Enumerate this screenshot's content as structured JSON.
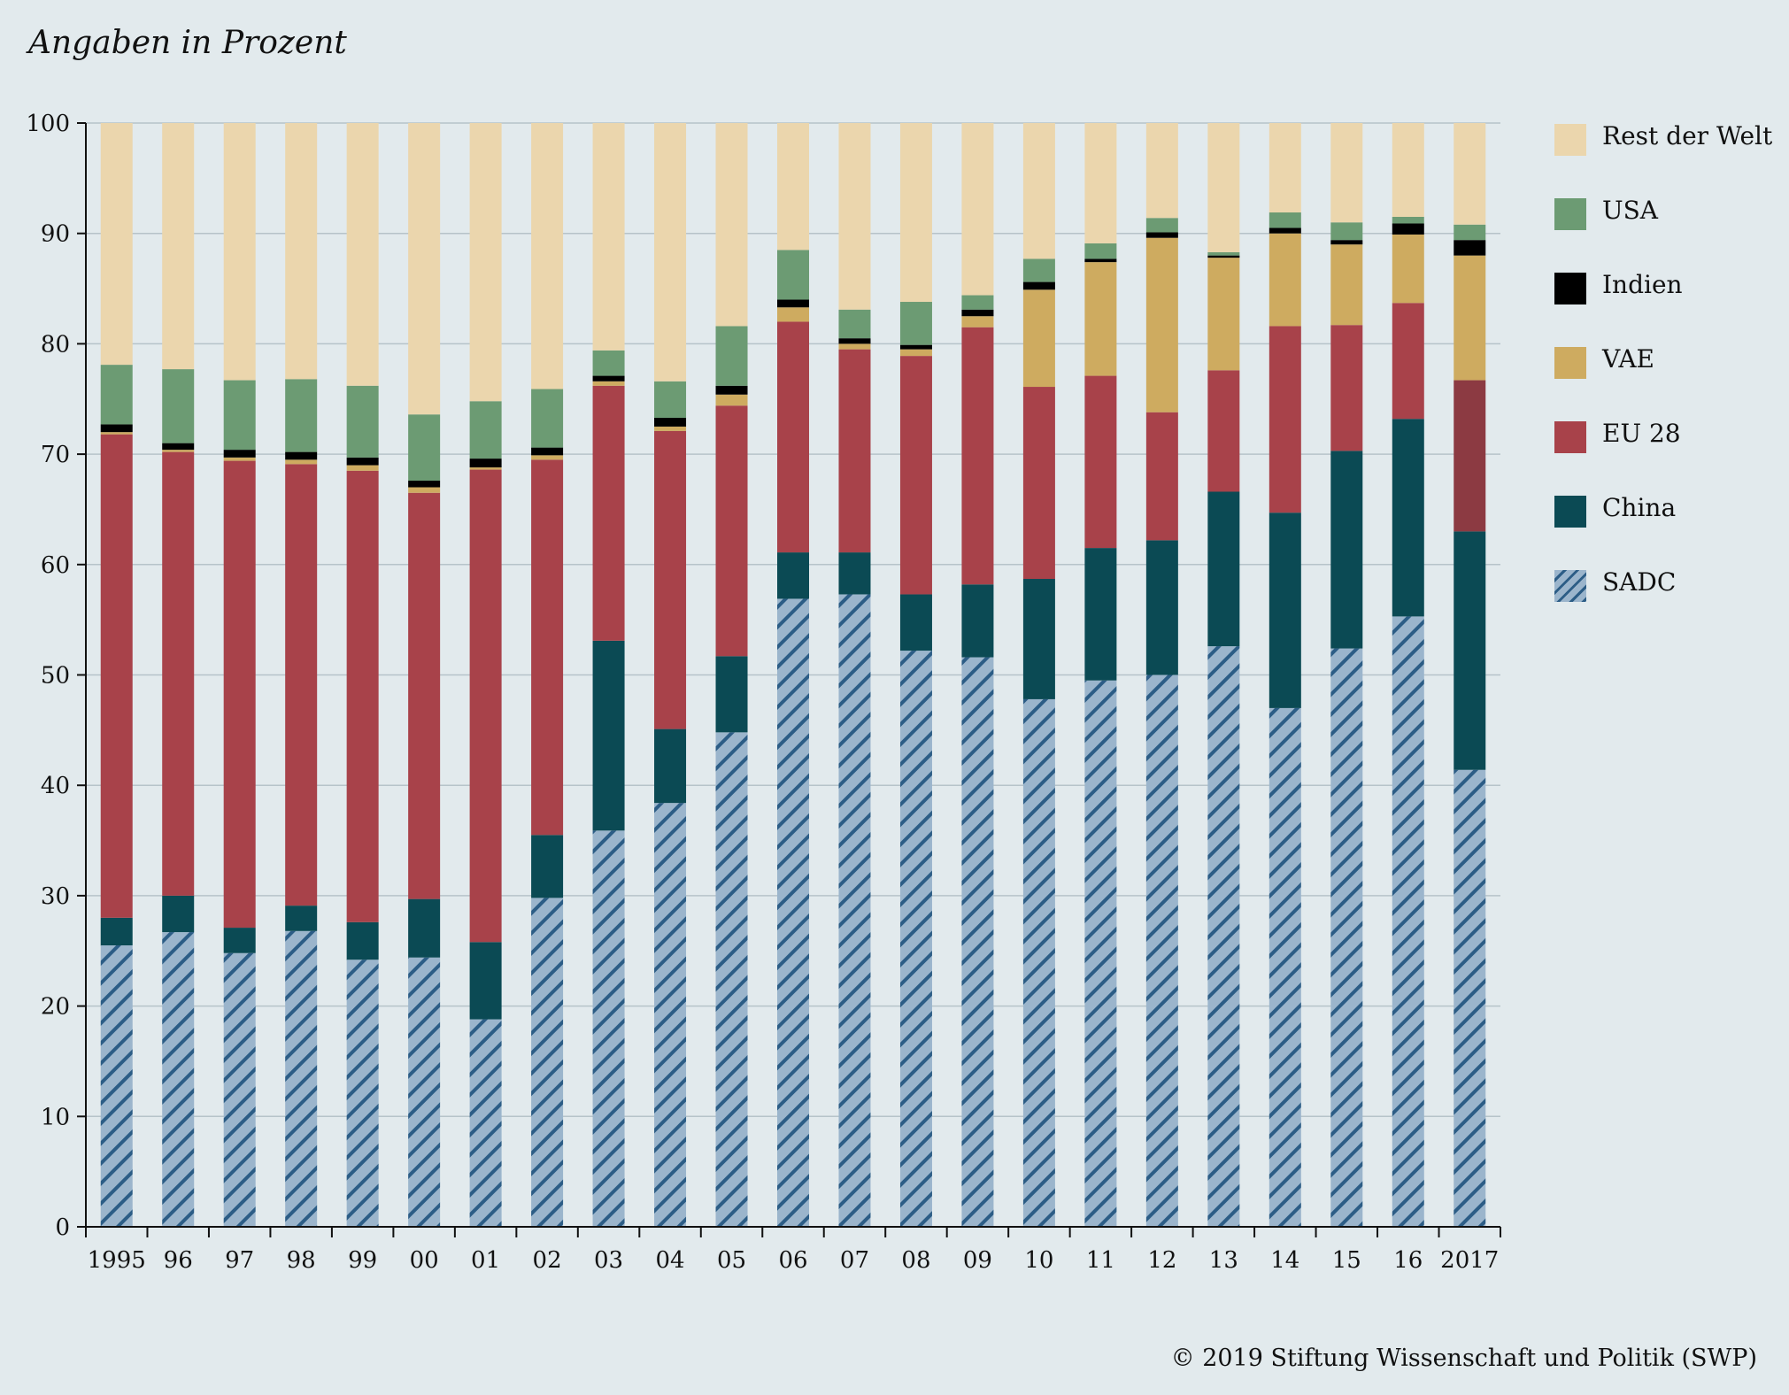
{
  "unit_label": "Angaben in Prozent",
  "copyright": "© 2019 Stiftung Wissenschaft und Politik (SWP)",
  "colors": {
    "background": "#e2eaed",
    "sadc_fill": "#9bb5cc",
    "sadc_stripe": "#2c5d86",
    "china": "#0b4a54",
    "eu28": "#a8424a",
    "eu28_2017": "#8c3a42",
    "vae": "#ceab60",
    "indien": "#000000",
    "usa": "#6c9b73",
    "rest": "#ebd6ad"
  },
  "chart_data": {
    "type": "bar",
    "stacked": true,
    "title": "",
    "xlabel": "",
    "ylabel": "",
    "ylim": [
      0,
      100
    ],
    "yticks": [
      0,
      10,
      20,
      30,
      40,
      50,
      60,
      70,
      80,
      90,
      100
    ],
    "grid": true,
    "legend_position": "right",
    "categories": [
      "1995",
      "96",
      "97",
      "98",
      "99",
      "00",
      "01",
      "02",
      "03",
      "04",
      "05",
      "06",
      "07",
      "08",
      "09",
      "10",
      "11",
      "12",
      "13",
      "14",
      "15",
      "16",
      "2017"
    ],
    "series": [
      {
        "name": "SADC",
        "color": "#9bb5cc",
        "pattern": "hatched",
        "values": [
          25.5,
          26.7,
          24.8,
          26.8,
          24.2,
          24.4,
          18.8,
          29.8,
          35.9,
          38.4,
          44.8,
          56.9,
          57.3,
          52.2,
          51.6,
          47.8,
          49.5,
          50.0,
          52.6,
          47.0,
          52.4,
          55.3,
          41.4
        ]
      },
      {
        "name": "China",
        "color": "#0b4a54",
        "values": [
          2.5,
          3.3,
          2.3,
          2.3,
          3.4,
          5.3,
          7.0,
          5.7,
          17.2,
          6.7,
          6.9,
          4.2,
          3.8,
          5.1,
          6.6,
          10.9,
          12.0,
          12.2,
          14.0,
          17.7,
          17.9,
          17.9,
          21.6
        ]
      },
      {
        "name": "EU 28",
        "color": "#a8424a",
        "values": [
          43.8,
          40.2,
          42.3,
          40.0,
          40.9,
          36.8,
          42.8,
          34.0,
          23.1,
          27.0,
          22.7,
          20.9,
          18.4,
          21.6,
          23.3,
          17.4,
          15.6,
          11.6,
          11.0,
          16.9,
          11.4,
          10.5,
          13.7
        ]
      },
      {
        "name": "VAE",
        "color": "#ceab60",
        "values": [
          0.2,
          0.2,
          0.3,
          0.4,
          0.5,
          0.5,
          0.2,
          0.4,
          0.4,
          0.4,
          1.0,
          1.3,
          0.5,
          0.6,
          1.0,
          8.8,
          10.3,
          15.8,
          10.2,
          8.4,
          7.3,
          6.2,
          11.3
        ]
      },
      {
        "name": "Indien",
        "color": "#000000",
        "values": [
          0.7,
          0.6,
          0.7,
          0.7,
          0.7,
          0.6,
          0.8,
          0.7,
          0.5,
          0.8,
          0.8,
          0.7,
          0.5,
          0.4,
          0.6,
          0.7,
          0.3,
          0.5,
          0.2,
          0.5,
          0.4,
          1.0,
          1.4
        ]
      },
      {
        "name": "USA",
        "color": "#6c9b73",
        "values": [
          5.4,
          6.7,
          6.3,
          6.6,
          6.5,
          6.0,
          5.2,
          5.3,
          2.3,
          3.3,
          5.4,
          4.5,
          2.6,
          3.9,
          1.3,
          2.1,
          1.4,
          1.3,
          0.3,
          1.4,
          1.6,
          0.6,
          1.4
        ]
      },
      {
        "name": "Rest der Welt",
        "color": "#ebd6ad",
        "values": [
          21.9,
          22.3,
          23.3,
          23.2,
          23.8,
          26.4,
          25.2,
          24.1,
          20.6,
          23.4,
          18.4,
          11.5,
          16.9,
          16.2,
          15.6,
          12.3,
          10.9,
          8.6,
          11.7,
          8.1,
          9.0,
          8.5,
          9.2
        ]
      }
    ]
  }
}
